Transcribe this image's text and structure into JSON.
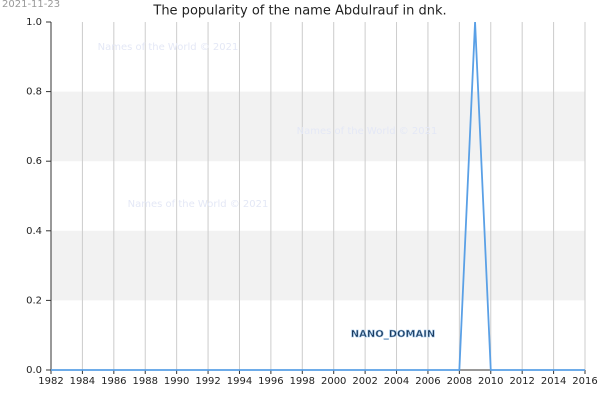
{
  "chart_data": {
    "type": "line",
    "title": "The popularity of the name Abdulrauf in dnk.",
    "date": "2021-11-23",
    "watermarks": [
      "Names of the World © 2021",
      "Names of the World © 2021",
      "Names of the World © 2021"
    ],
    "domain_label": "NANO_DOMAIN",
    "x": [
      1982,
      1983,
      1984,
      1985,
      1986,
      1987,
      1988,
      1989,
      1990,
      1991,
      1992,
      1993,
      1994,
      1995,
      1996,
      1997,
      1998,
      1999,
      2000,
      2001,
      2002,
      2003,
      2004,
      2005,
      2006,
      2007,
      2008,
      2009,
      2010,
      2011,
      2012,
      2013,
      2014,
      2015,
      2016
    ],
    "values": [
      0,
      0,
      0,
      0,
      0,
      0,
      0,
      0,
      0,
      0,
      0,
      0,
      0,
      0,
      0,
      0,
      0,
      0,
      0,
      0,
      0,
      0,
      0,
      0,
      0,
      0,
      0,
      1,
      0,
      0,
      0,
      0,
      0,
      0,
      0
    ],
    "color": "#5aa0e6",
    "xlim": [
      1982,
      2016
    ],
    "xticks": [
      1982,
      1984,
      1986,
      1988,
      1990,
      1992,
      1994,
      1996,
      1998,
      2000,
      2002,
      2004,
      2006,
      2008,
      2010,
      2012,
      2014,
      2016
    ],
    "ylim": [
      0,
      1
    ],
    "yticks": [
      {
        "value": 0,
        "label": "0.0"
      },
      0.2,
      0.4,
      0.6,
      0.8,
      {
        "value": 1,
        "label": "1.0"
      }
    ],
    "grid": true
  }
}
